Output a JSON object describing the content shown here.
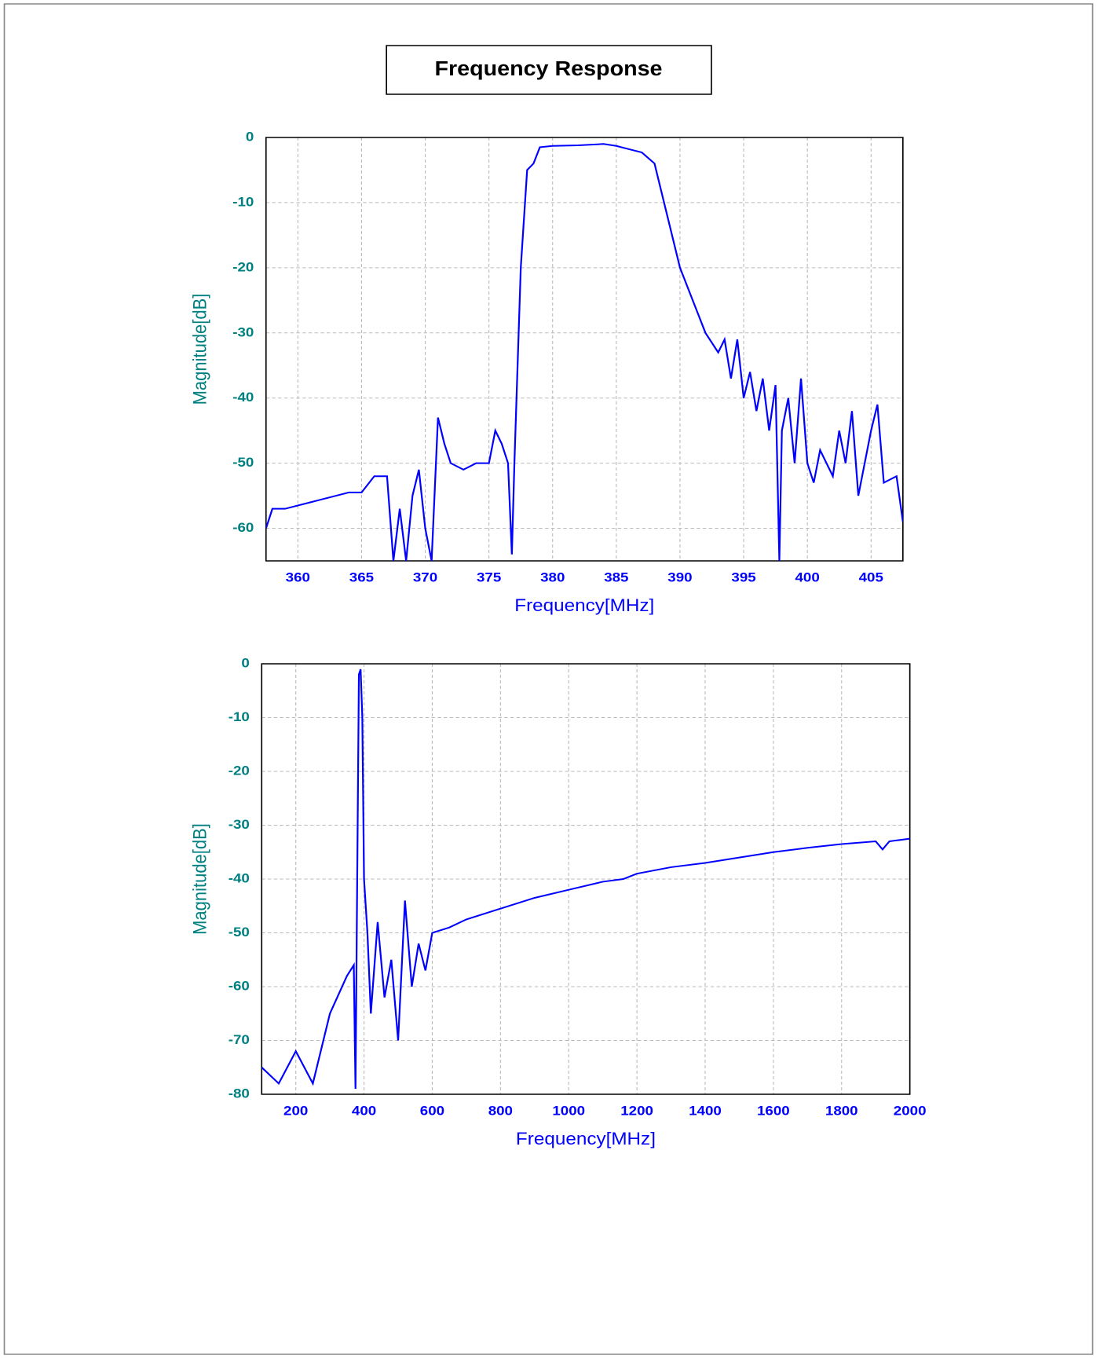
{
  "title": "Frequency Response",
  "chart_data": [
    {
      "type": "line",
      "xlabel": "Frequency[MHz]",
      "ylabel": "Magnitude[dB]",
      "xlim": [
        357.5,
        407.5
      ],
      "ylim": [
        -65,
        0
      ],
      "xticks": [
        360,
        365,
        370,
        375,
        380,
        385,
        390,
        395,
        400,
        405
      ],
      "yticks": [
        0,
        -10,
        -20,
        -30,
        -40,
        -50,
        -60
      ],
      "grid": true,
      "x": [
        357.5,
        358,
        359,
        360,
        361,
        362,
        363,
        364,
        365,
        366,
        367,
        367.5,
        368,
        368.5,
        369,
        369.5,
        370,
        370.5,
        371,
        371.5,
        372,
        373,
        374,
        375,
        375.5,
        376,
        376.5,
        376.8,
        377,
        377.5,
        378,
        378.5,
        379,
        380,
        382,
        384,
        385,
        386,
        387,
        388,
        389,
        390,
        391,
        392,
        393,
        393.5,
        394,
        394.5,
        395,
        395.5,
        396,
        396.5,
        397,
        397.5,
        397.8,
        398,
        398.5,
        399,
        399.5,
        400,
        400.5,
        401,
        402,
        402.5,
        403,
        403.5,
        404,
        404.5,
        405,
        405.5,
        406,
        407,
        407.5
      ],
      "series": [
        {
          "color": "#0000ff",
          "values": [
            -60,
            -57,
            -57,
            -56.5,
            -56,
            -55.5,
            -55,
            -54.5,
            -54.5,
            -52,
            -52,
            -65,
            -57,
            -65,
            -55,
            -51,
            -60,
            -65,
            -43,
            -47,
            -50,
            -51,
            -50,
            -50,
            -45,
            -47,
            -50,
            -64,
            -50,
            -20,
            -5,
            -4,
            -1.5,
            -1.3,
            -1.2,
            -1.0,
            -1.3,
            -1.8,
            -2.3,
            -4,
            -12,
            -20,
            -25,
            -30,
            -33,
            -31,
            -37,
            -31,
            -40,
            -36,
            -42,
            -37,
            -45,
            -38,
            -65,
            -45,
            -40,
            -50,
            -37,
            -50,
            -53,
            -48,
            -52,
            -45,
            -50,
            -42,
            -55,
            -50,
            -45,
            -41,
            -53,
            -52,
            -59
          ]
        }
      ]
    },
    {
      "type": "line",
      "xlabel": "Frequency[MHz]",
      "ylabel": "Magnitude[dB]",
      "xlim": [
        100,
        2000
      ],
      "ylim": [
        -80,
        0
      ],
      "xticks": [
        200,
        400,
        600,
        800,
        1000,
        1200,
        1400,
        1600,
        1800,
        2000
      ],
      "yticks": [
        0,
        -10,
        -20,
        -30,
        -40,
        -50,
        -60,
        -70,
        -80
      ],
      "grid": true,
      "x": [
        100,
        150,
        200,
        250,
        300,
        350,
        370,
        375,
        380,
        385,
        390,
        395,
        400,
        410,
        420,
        440,
        460,
        480,
        500,
        520,
        540,
        560,
        580,
        600,
        650,
        700,
        800,
        900,
        1000,
        1100,
        1160,
        1200,
        1300,
        1400,
        1500,
        1600,
        1700,
        1800,
        1900,
        1920,
        1940,
        2000
      ],
      "series": [
        {
          "color": "#0000ff",
          "values": [
            -75,
            -78,
            -72,
            -78,
            -65,
            -58,
            -56,
            -79,
            -40,
            -2,
            -1,
            -10,
            -40,
            -50,
            -65,
            -48,
            -62,
            -55,
            -70,
            -44,
            -60,
            -52,
            -57,
            -50,
            -49,
            -47.5,
            -45.5,
            -43.5,
            -42,
            -40.5,
            -40,
            -39,
            -37.8,
            -37,
            -36,
            -35,
            -34.2,
            -33.5,
            -33,
            -34.5,
            -33,
            -32.5
          ]
        }
      ]
    }
  ]
}
